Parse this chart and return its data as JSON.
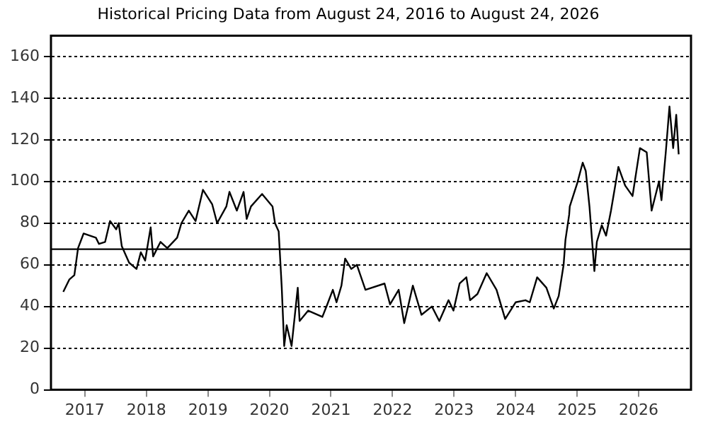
{
  "chart_data": {
    "type": "line",
    "title": "Historical Pricing Data from August 24, 2016 to August 24, 2026",
    "x": [
      2016.65,
      2016.75,
      2016.83,
      2016.89,
      2016.98,
      2017.18,
      2017.23,
      2017.33,
      2017.41,
      2017.51,
      2017.55,
      2017.6,
      2017.72,
      2017.84,
      2017.91,
      2017.98,
      2018.07,
      2018.11,
      2018.23,
      2018.34,
      2018.5,
      2018.57,
      2018.65,
      2018.69,
      2018.8,
      2018.92,
      2019.07,
      2019.15,
      2019.3,
      2019.35,
      2019.47,
      2019.58,
      2019.63,
      2019.7,
      2019.88,
      2020.05,
      2020.09,
      2020.15,
      2020.2,
      2020.24,
      2020.28,
      2020.36,
      2020.46,
      2020.49,
      2020.63,
      2020.86,
      2020.94,
      2021.03,
      2021.09,
      2021.17,
      2021.23,
      2021.33,
      2021.42,
      2021.56,
      2021.87,
      2021.96,
      2022.1,
      2022.19,
      2022.33,
      2022.47,
      2022.64,
      2022.76,
      2022.91,
      2022.99,
      2023.09,
      2023.2,
      2023.26,
      2023.38,
      2023.53,
      2023.69,
      2023.83,
      2024.0,
      2024.16,
      2024.23,
      2024.35,
      2024.5,
      2024.62,
      2024.7,
      2024.78,
      2024.81,
      2024.87,
      2024.88,
      2025.0,
      2025.09,
      2025.14,
      2025.2,
      2025.28,
      2025.32,
      2025.4,
      2025.47,
      2025.55,
      2025.67,
      2025.78,
      2025.9,
      2026.02,
      2026.13,
      2026.21,
      2026.33,
      2026.37,
      2026.44,
      2026.5,
      2026.56,
      2026.61,
      2026.65
    ],
    "series": [
      {
        "color": "#000000",
        "values": [
          47,
          53,
          55,
          68,
          75,
          73,
          70,
          71,
          81,
          77,
          80,
          69,
          61,
          58,
          66,
          62,
          78,
          64,
          71,
          68,
          73,
          80,
          84,
          86,
          81,
          96,
          89,
          80,
          88,
          95,
          86,
          95,
          82,
          88,
          94,
          88,
          80,
          76,
          49,
          21,
          31,
          21,
          49,
          33,
          38,
          35,
          41,
          48,
          42,
          50,
          63,
          58,
          60,
          48,
          51,
          41,
          48,
          32,
          50,
          36,
          40,
          33,
          43,
          38,
          51,
          54,
          43,
          46,
          56,
          48,
          34,
          42,
          43,
          42,
          54,
          49,
          39,
          45,
          60,
          72,
          84,
          88,
          99,
          109,
          105,
          88,
          57,
          71,
          79,
          74,
          86,
          107,
          98,
          93,
          116,
          114,
          86,
          100,
          91,
          114,
          136,
          116,
          132,
          113
        ]
      }
    ],
    "xlim": [
      2016.45,
      2026.85
    ],
    "xticks": [
      2017,
      2018,
      2019,
      2020,
      2021,
      2022,
      2023,
      2024,
      2025,
      2026
    ],
    "ylim": [
      0,
      170
    ],
    "yticks": [
      0,
      20,
      40,
      60,
      80,
      100,
      120,
      140,
      160
    ],
    "grid": "y",
    "legend": false,
    "marker": "none",
    "line_style": "solid",
    "ref_lines": [
      {
        "axis": "y",
        "value": 67.5,
        "color": "#000000",
        "line_style": "solid"
      }
    ]
  }
}
